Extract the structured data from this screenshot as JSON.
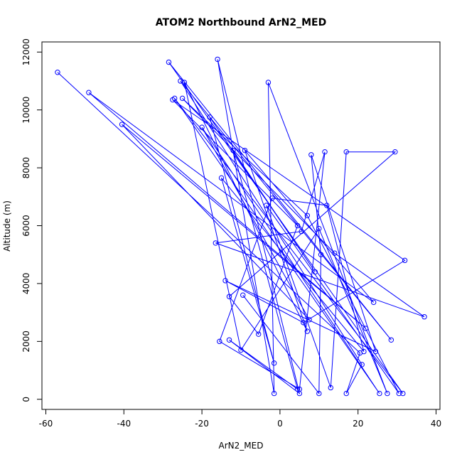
{
  "chart_data": {
    "type": "line",
    "title": "ATOM2 Northbound ArN2_MED",
    "xlabel": "ArN2_MED",
    "ylabel": "Altitude (m)",
    "xlim": [
      -61,
      41
    ],
    "ylim": [
      -350,
      12350
    ],
    "x_ticks": [
      -60,
      -40,
      -20,
      0,
      20,
      40
    ],
    "y_ticks": [
      0,
      2000,
      4000,
      6000,
      8000,
      10000,
      12000
    ],
    "grid": false,
    "legend": "none",
    "color": "#0000ff",
    "marker": "open-circle",
    "series": [
      {
        "x": [
          -57,
          20.5,
          17,
          21,
          -25.5,
          28.5,
          -28.5,
          31.5,
          -27,
          25.5,
          -20,
          7.5,
          -40.5,
          22,
          -49,
          24,
          -9,
          7,
          -24.5,
          -10,
          10,
          27.5,
          -3,
          -1.5,
          -16,
          5,
          -13,
          4.5,
          -12,
          9,
          -18,
          -1.5,
          -15,
          21.5,
          12,
          -2,
          -15.5,
          5,
          11.5,
          5.5,
          -16.5,
          37,
          14,
          -25,
          7,
          30.5,
          -3.5,
          13,
          17,
          29.5,
          -13,
          -5.5,
          4.5,
          -27.5,
          32,
          6,
          -14,
          24.5,
          8,
          10.5,
          10,
          -9.5
        ],
        "y": [
          11300,
          1600,
          200,
          1200,
          11000,
          2050,
          11650,
          200,
          10400,
          200,
          9400,
          2750,
          9500,
          2450,
          10600,
          3350,
          8600,
          2350,
          10950,
          1700,
          5900,
          200,
          10950,
          200,
          11750,
          200,
          2050,
          350,
          8600,
          4400,
          9750,
          1250,
          7650,
          1650,
          6700,
          6950,
          2000,
          350,
          8550,
          5800,
          5400,
          2850,
          5050,
          10400,
          6350,
          200,
          6700,
          400,
          8550,
          8550,
          3550,
          2250,
          6000,
          10350,
          4800,
          2650,
          4100,
          1650,
          8450,
          5000,
          200,
          3600
        ]
      }
    ]
  }
}
